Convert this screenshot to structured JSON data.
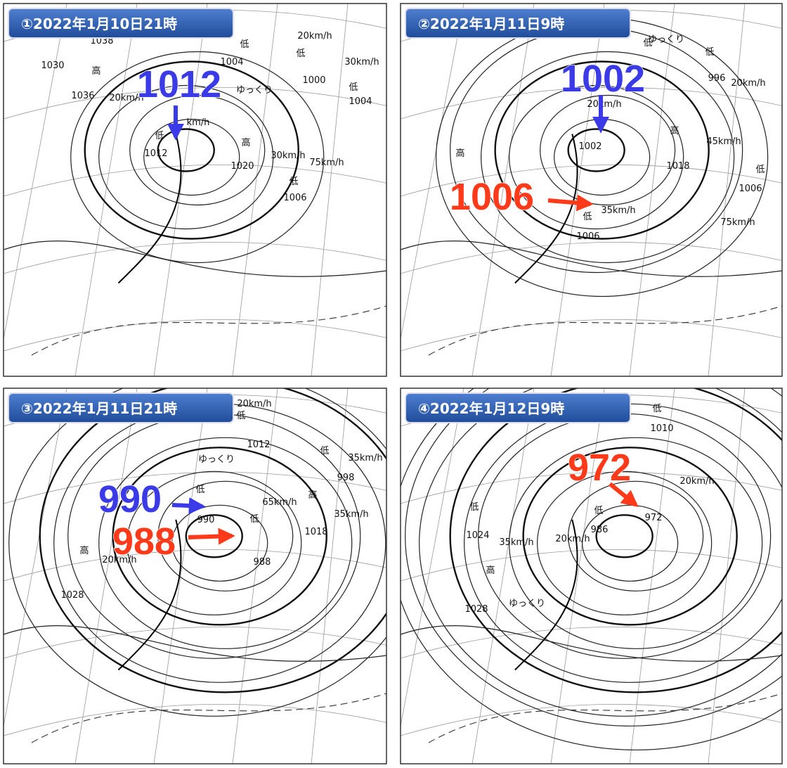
{
  "panels": [
    {
      "title": "①2022年1月10日21時",
      "highlights": [
        {
          "text": "1012",
          "color": "#3a3ae6"
        }
      ],
      "labels": [
        "1030",
        "1038",
        "高",
        "1036",
        "20km/h",
        "低",
        "1012",
        "km/h",
        "高",
        "1020",
        "30km/h",
        "低",
        "1004",
        "ゆっくり",
        "20km/h",
        "低",
        "1000",
        "30km/h",
        "低",
        "1004",
        "75km/h",
        "低",
        "1006"
      ]
    },
    {
      "title": "②2022年1月11日9時",
      "highlights": [
        {
          "text": "1002",
          "color": "#3a3ae6"
        },
        {
          "text": "1006",
          "color": "#ff3a1a"
        }
      ],
      "labels": [
        "高",
        "20km/h",
        "1002",
        "低",
        "1006",
        "35km/h",
        "高",
        "1018",
        "45km/h",
        "ゆっくり",
        "低",
        "低",
        "996",
        "20km/h",
        "低",
        "1006",
        "75km/h"
      ]
    },
    {
      "title": "③2022年1月11日21時",
      "highlights": [
        {
          "text": "990",
          "color": "#3a3ae6"
        },
        {
          "text": "988",
          "color": "#ff3a1a"
        }
      ],
      "labels": [
        "20km/h",
        "低",
        "1012",
        "低",
        "35km/h",
        "998",
        "ゆっくり",
        "低",
        "990",
        "低",
        "988",
        "65km/h",
        "高",
        "1018",
        "35km/h",
        "高",
        "1028",
        "20km/h"
      ]
    },
    {
      "title": "④2022年1月12日9時",
      "highlights": [
        {
          "text": "972",
          "color": "#ff3a1a"
        }
      ],
      "labels": [
        "低",
        "1010",
        "20km/h",
        "低",
        "986",
        "972",
        "20km/h",
        "低",
        "1024",
        "35km/h",
        "高",
        "1028",
        "ゆっくり"
      ]
    }
  ]
}
